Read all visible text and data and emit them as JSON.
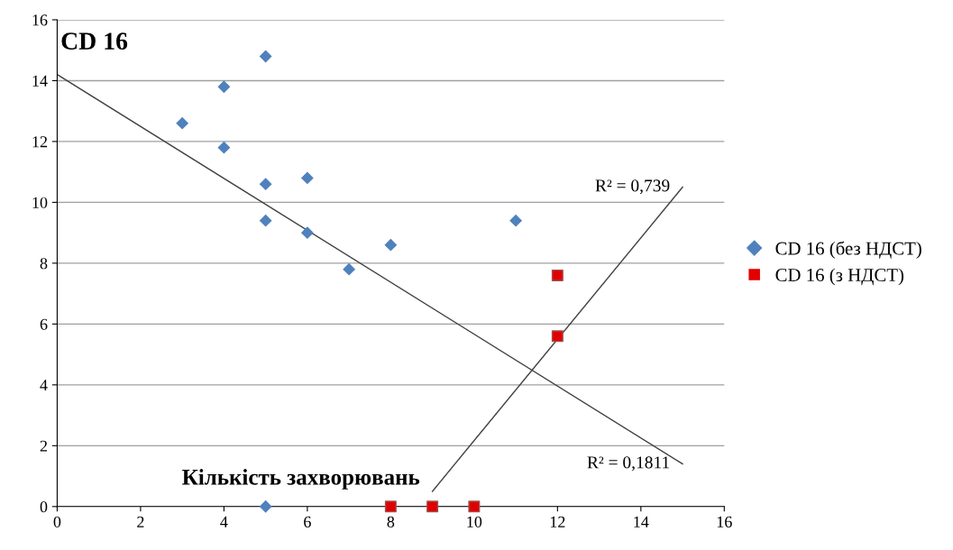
{
  "chart_data": {
    "type": "scatter",
    "title": "CD 16",
    "xlabel": "Кількість захворювань",
    "xlim": [
      0,
      16
    ],
    "xticks": [
      0,
      2,
      4,
      6,
      8,
      10,
      12,
      14,
      16
    ],
    "ylim": [
      0,
      16
    ],
    "yticks": [
      0,
      2,
      4,
      6,
      8,
      10,
      12,
      14,
      16
    ],
    "grid": "y",
    "legend": "right",
    "series": [
      {
        "name": "CD 16 (без НДСТ)",
        "color": "#4f81bd",
        "marker": "diamond",
        "x": [
          3,
          4,
          4,
          5,
          5,
          5,
          6,
          6,
          7,
          8,
          11,
          5
        ],
        "values": [
          12.6,
          13.8,
          11.8,
          14.8,
          10.6,
          9.4,
          10.8,
          9.0,
          7.8,
          8.6,
          9.4,
          0
        ]
      },
      {
        "name": "CD 16 (з НДСТ)",
        "color": "#e00000",
        "marker": "square",
        "x": [
          12,
          12,
          8,
          9,
          10
        ],
        "values": [
          7.6,
          5.6,
          0,
          0,
          0
        ]
      },
      {
        "type": "line",
        "color": "#404040",
        "x": [
          0,
          15
        ],
        "values": [
          14.2,
          1.4
        ]
      },
      {
        "type": "line",
        "color": "#404040",
        "x": [
          9,
          15
        ],
        "values": [
          0.5,
          10.5
        ]
      }
    ],
    "annotations": [
      {
        "text": "R² = 0,739",
        "x": 15,
        "y": 10.5
      },
      {
        "text": "R² = 0,1811",
        "x": 15,
        "y": 1.4
      }
    ]
  }
}
